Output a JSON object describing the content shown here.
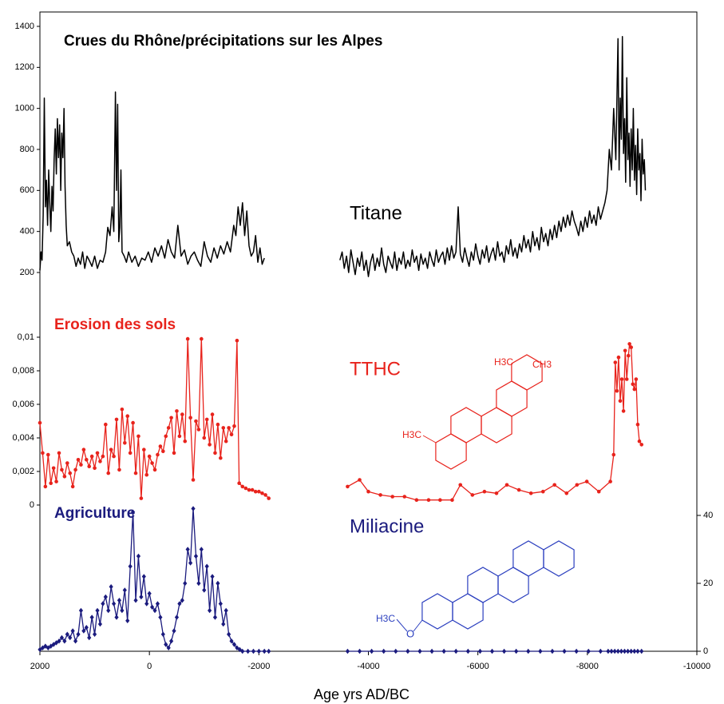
{
  "chart_data": {
    "type": "line",
    "title": "Crues du Rhône/précipitations sur les Alpes",
    "xlabel": "Age yrs AD/BC",
    "xlim": [
      2000,
      -10000
    ],
    "xticks": [
      2000,
      0,
      -2000,
      -4000,
      -6000,
      -8000,
      -10000
    ],
    "panels": [
      {
        "name": "Titane",
        "color": "#000000",
        "ylim": [
          200,
          1400
        ],
        "yticks": [
          200,
          400,
          600,
          800,
          1000,
          1200,
          1400
        ],
        "x": [
          2000,
          1980,
          1960,
          1940,
          1920,
          1900,
          1880,
          1860,
          1840,
          1820,
          1800,
          1780,
          1760,
          1740,
          1720,
          1700,
          1680,
          1660,
          1640,
          1620,
          1600,
          1580,
          1560,
          1540,
          1520,
          1500,
          1460,
          1420,
          1380,
          1340,
          1300,
          1260,
          1220,
          1180,
          1140,
          1100,
          1050,
          1000,
          950,
          900,
          850,
          800,
          760,
          720,
          680,
          650,
          620,
          600,
          580,
          560,
          540,
          520,
          500,
          460,
          420,
          380,
          320,
          260,
          200,
          140,
          80,
          20,
          -40,
          -100,
          -160,
          -220,
          -280,
          -340,
          -400,
          -460,
          -520,
          -580,
          -640,
          -700,
          -760,
          -820,
          -880,
          -940,
          -1000,
          -1060,
          -1120,
          -1180,
          -1240,
          -1300,
          -1360,
          -1420,
          -1480,
          -1540,
          -1580,
          -1620,
          -1660,
          -1700,
          -1740,
          -1780,
          -1820,
          -1860,
          -1900,
          -1940,
          -1980,
          -2020,
          -2060,
          -2100,
          -2800,
          -3480,
          -3520,
          -3560,
          -3600,
          -3640,
          -3680,
          -3720,
          -3760,
          -3800,
          -3840,
          -3880,
          -3920,
          -3960,
          -4000,
          -4040,
          -4080,
          -4120,
          -4160,
          -4200,
          -4240,
          -4280,
          -4320,
          -4360,
          -4400,
          -4440,
          -4480,
          -4520,
          -4560,
          -4600,
          -4640,
          -4680,
          -4720,
          -4760,
          -4800,
          -4840,
          -4880,
          -4920,
          -4960,
          -5000,
          -5040,
          -5080,
          -5120,
          -5160,
          -5200,
          -5240,
          -5280,
          -5320,
          -5360,
          -5400,
          -5440,
          -5480,
          -5520,
          -5560,
          -5600,
          -5640,
          -5680,
          -5720,
          -5760,
          -5800,
          -5840,
          -5880,
          -5920,
          -5960,
          -6000,
          -6040,
          -6080,
          -6120,
          -6160,
          -6200,
          -6240,
          -6280,
          -6320,
          -6360,
          -6400,
          -6440,
          -6480,
          -6520,
          -6560,
          -6600,
          -6640,
          -6680,
          -6720,
          -6760,
          -6800,
          -6840,
          -6880,
          -6920,
          -6960,
          -7000,
          -7040,
          -7080,
          -7120,
          -7160,
          -7200,
          -7240,
          -7280,
          -7320,
          -7360,
          -7400,
          -7440,
          -7480,
          -7520,
          -7560,
          -7600,
          -7640,
          -7680,
          -7720,
          -7760,
          -7800,
          -7840,
          -7880,
          -7920,
          -7960,
          -8000,
          -8040,
          -8080,
          -8120,
          -8160,
          -8200,
          -8240,
          -8280,
          -8320,
          -8360,
          -8400,
          -8440,
          -8480,
          -8520,
          -8560,
          -8580,
          -8600,
          -8620,
          -8640,
          -8660,
          -8680,
          -8700,
          -8720,
          -8740,
          -8760,
          -8780,
          -8800,
          -8820,
          -8840,
          -8860,
          -8880,
          -8900,
          -8920,
          -8940,
          -8960,
          -8980,
          -9000,
          -9020,
          -9040,
          -9060
        ],
        "values": [
          210,
          300,
          260,
          480,
          1050,
          520,
          650,
          430,
          700,
          540,
          400,
          620,
          500,
          750,
          900,
          680,
          950,
          760,
          920,
          600,
          880,
          760,
          1000,
          620,
          430,
          330,
          350,
          300,
          280,
          230,
          270,
          240,
          300,
          220,
          280,
          260,
          230,
          280,
          220,
          260,
          250,
          300,
          420,
          380,
          520,
          400,
          1080,
          600,
          1020,
          350,
          420,
          700,
          300,
          280,
          250,
          300,
          250,
          280,
          230,
          270,
          260,
          300,
          250,
          320,
          280,
          330,
          270,
          360,
          300,
          270,
          430,
          280,
          310,
          240,
          280,
          300,
          260,
          230,
          350,
          280,
          250,
          320,
          270,
          330,
          290,
          350,
          300,
          430,
          380,
          520,
          430,
          540,
          380,
          500,
          330,
          280,
          300,
          380,
          250,
          320,
          240,
          270,
          null,
          260,
          300,
          220,
          280,
          200,
          310,
          250,
          190,
          270,
          230,
          300,
          210,
          260,
          180,
          250,
          290,
          210,
          270,
          230,
          320,
          240,
          200,
          280,
          250,
          220,
          300,
          210,
          270,
          240,
          300,
          220,
          260,
          230,
          310,
          250,
          280,
          210,
          290,
          240,
          270,
          220,
          300,
          260,
          230,
          310,
          250,
          280,
          300,
          240,
          320,
          260,
          330,
          270,
          300,
          520,
          290,
          250,
          320,
          270,
          230,
          300,
          260,
          340,
          280,
          240,
          310,
          270,
          330,
          250,
          290,
          320,
          260,
          350,
          280,
          300,
          250,
          330,
          290,
          360,
          280,
          320,
          270,
          340,
          300,
          380,
          320,
          360,
          300,
          400,
          330,
          370,
          310,
          420,
          350,
          390,
          330,
          410,
          360,
          430,
          370,
          450,
          400,
          470,
          420,
          480,
          430,
          500,
          450,
          420,
          380,
          450,
          400,
          470,
          420,
          500,
          440,
          480,
          430,
          520,
          460,
          500,
          540,
          600,
          800,
          700,
          1000,
          750,
          1340,
          700,
          1050,
          850,
          1350,
          780,
          950,
          640,
          1150,
          750,
          880,
          620,
          900,
          700,
          1000,
          650,
          820,
          580,
          900,
          700,
          780,
          550,
          850,
          680,
          750,
          600
        ]
      },
      {
        "label": "Erosion des sols",
        "name": "TTHC",
        "color": "#e8231c",
        "marker": "circle",
        "ylim": [
          0,
          0.01
        ],
        "yticks": [
          0,
          {
            "value": 0.002,
            "label": "0,002"
          },
          {
            "value": 0.004,
            "label": "0,004"
          },
          {
            "value": 0.006,
            "label": "0,006"
          },
          {
            "value": 0.008,
            "label": "0,008"
          },
          {
            "value": 0.01,
            "label": "0,01"
          }
        ],
        "structure_labels": [
          "H3C",
          "CH3",
          "H3C"
        ],
        "x": [
          2000,
          1950,
          1900,
          1850,
          1800,
          1750,
          1700,
          1650,
          1600,
          1550,
          1500,
          1450,
          1400,
          1350,
          1300,
          1250,
          1200,
          1150,
          1100,
          1050,
          1000,
          950,
          900,
          850,
          800,
          750,
          700,
          650,
          600,
          550,
          500,
          450,
          400,
          350,
          300,
          250,
          200,
          150,
          100,
          50,
          0,
          -50,
          -100,
          -150,
          -200,
          -250,
          -300,
          -350,
          -400,
          -450,
          -500,
          -550,
          -600,
          -650,
          -700,
          -750,
          -800,
          -850,
          -900,
          -950,
          -1000,
          -1050,
          -1100,
          -1150,
          -1200,
          -1250,
          -1300,
          -1350,
          -1400,
          -1450,
          -1500,
          -1550,
          -1600,
          -1640,
          -1700,
          -1760,
          -1820,
          -1880,
          -1940,
          -2000,
          -2060,
          -2120,
          -2180,
          -2800,
          -3620,
          -3840,
          -4000,
          -4220,
          -4440,
          -4660,
          -4880,
          -5100,
          -5310,
          -5530,
          -5680,
          -5900,
          -6120,
          -6340,
          -6530,
          -6750,
          -6970,
          -7190,
          -7400,
          -7620,
          -7810,
          -7990,
          -8210,
          -8420,
          -8480,
          -8510,
          -8540,
          -8570,
          -8600,
          -8630,
          -8660,
          -8690,
          -8720,
          -8750,
          -8770,
          -8800,
          -8830,
          -8860,
          -8890,
          -8920,
          -8950,
          -8990
        ],
        "values": [
          0.0049,
          0.0031,
          0.0011,
          0.003,
          0.0013,
          0.0022,
          0.0014,
          0.0031,
          0.0021,
          0.0017,
          0.0025,
          0.0019,
          0.0011,
          0.0021,
          0.0027,
          0.0024,
          0.0033,
          0.0027,
          0.0023,
          0.0029,
          0.0022,
          0.0031,
          0.0026,
          0.0029,
          0.0048,
          0.0019,
          0.0033,
          0.0029,
          0.0051,
          0.0021,
          0.0057,
          0.0037,
          0.0053,
          0.0031,
          0.0049,
          0.0019,
          0.0041,
          0.0004,
          0.0033,
          0.0018,
          0.0029,
          0.0025,
          0.0021,
          0.003,
          0.0035,
          0.0032,
          0.0041,
          0.0046,
          0.0052,
          0.0031,
          0.0056,
          0.0041,
          0.0054,
          0.0038,
          0.0099,
          0.0052,
          0.0015,
          0.005,
          0.0045,
          0.0099,
          0.004,
          0.0051,
          0.0036,
          0.0054,
          0.0031,
          0.0048,
          0.0028,
          0.0046,
          0.0038,
          0.0046,
          0.0042,
          0.0047,
          0.0098,
          0.0013,
          0.0011,
          0.001,
          0.0009,
          0.0009,
          0.0008,
          0.0008,
          0.0007,
          0.0006,
          0.0004,
          null,
          0.0011,
          0.0015,
          0.0008,
          0.0006,
          0.0005,
          0.0005,
          0.0003,
          0.0003,
          0.0003,
          0.0003,
          0.0012,
          0.0006,
          0.0008,
          0.0007,
          0.0012,
          0.0009,
          0.0007,
          0.0008,
          0.0012,
          0.0007,
          0.0012,
          0.0014,
          0.0008,
          0.0014,
          0.003,
          0.0085,
          0.0068,
          0.0088,
          0.0062,
          0.0075,
          0.0056,
          0.0092,
          0.0075,
          0.0089,
          0.0096,
          0.0094,
          0.0072,
          0.0069,
          0.0075,
          0.0048,
          0.0038,
          0.0036
        ]
      },
      {
        "label": "Agriculture",
        "name": "Miliacine",
        "color": "#1b1b7e",
        "marker": "diamond",
        "axis": "y2",
        "y2lim": [
          0,
          40
        ],
        "y2ticks": [
          0,
          20,
          40
        ],
        "structure_labels": [
          "H3C",
          "O"
        ],
        "x": [
          2000,
          1950,
          1900,
          1850,
          1800,
          1750,
          1700,
          1650,
          1600,
          1550,
          1500,
          1450,
          1400,
          1350,
          1300,
          1250,
          1200,
          1150,
          1100,
          1050,
          1000,
          950,
          900,
          850,
          800,
          750,
          700,
          650,
          600,
          550,
          500,
          450,
          400,
          350,
          300,
          250,
          200,
          150,
          100,
          50,
          0,
          -50,
          -100,
          -150,
          -200,
          -250,
          -300,
          -350,
          -400,
          -450,
          -500,
          -550,
          -600,
          -650,
          -700,
          -750,
          -800,
          -850,
          -900,
          -950,
          -1000,
          -1050,
          -1100,
          -1150,
          -1200,
          -1250,
          -1300,
          -1350,
          -1400,
          -1450,
          -1500,
          -1550,
          -1600,
          -1650,
          -1700,
          -1800,
          -1900,
          -2000,
          -2100,
          -2180,
          -2800,
          -3620,
          -3840,
          -4060,
          -4280,
          -4500,
          -4720,
          -4940,
          -5160,
          -5380,
          -5600,
          -5820,
          -6040,
          -6260,
          -6480,
          -6700,
          -6920,
          -7140,
          -7360,
          -7580,
          -7800,
          -8020,
          -8240,
          -8380,
          -8440,
          -8500,
          -8560,
          -8620,
          -8680,
          -8740,
          -8800,
          -8860,
          -8920,
          -8990
        ],
        "values": [
          0.5,
          1,
          1.5,
          1,
          1.5,
          2,
          2.5,
          3,
          4,
          3,
          5,
          4,
          6,
          3,
          5,
          12,
          6,
          7,
          4,
          10,
          5,
          12,
          8,
          14,
          16,
          12,
          19,
          14,
          10,
          15,
          12,
          18,
          9,
          25,
          41,
          15,
          28,
          16,
          22,
          14,
          17,
          13,
          12,
          14,
          10,
          5,
          2,
          1,
          3,
          6,
          10,
          14,
          15,
          20,
          30,
          26,
          42,
          28,
          20,
          30,
          18,
          25,
          12,
          22,
          10,
          20,
          14,
          8,
          12,
          5,
          3,
          2,
          1,
          0.5,
          0,
          0,
          0,
          0,
          0,
          0,
          null,
          0,
          0,
          0,
          0,
          0,
          0,
          0,
          0,
          0,
          0,
          0,
          0,
          0,
          0,
          0,
          0,
          0,
          0,
          0,
          0,
          0,
          0,
          0,
          0,
          0,
          0,
          0,
          0,
          0,
          0,
          0,
          0,
          0
        ]
      }
    ]
  }
}
